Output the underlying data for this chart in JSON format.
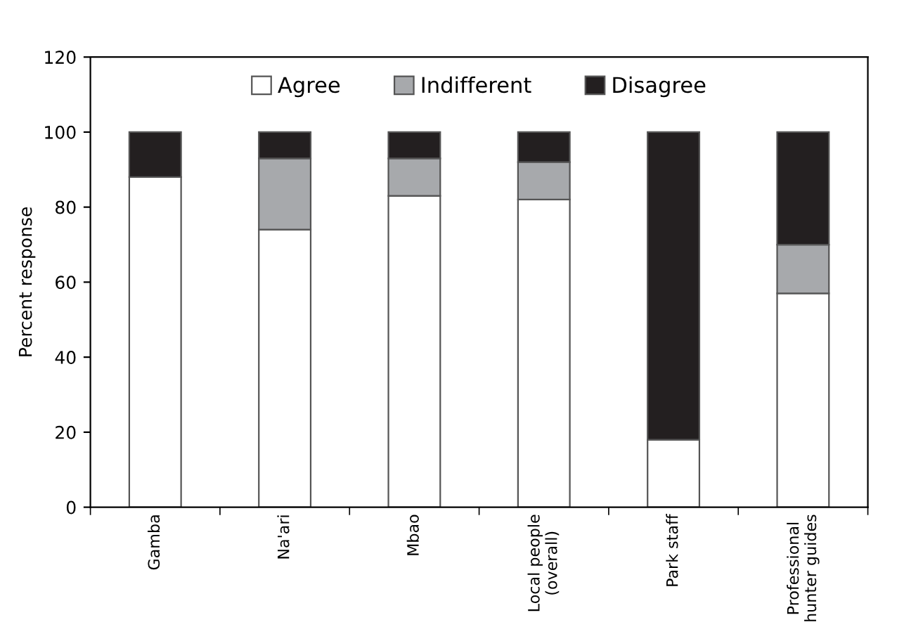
{
  "chart_data": {
    "type": "bar",
    "stacked": true,
    "ylabel": "Percent response",
    "categories": [
      "Gamba",
      "Na'ari",
      "Mbao",
      "Local people\n(overall)",
      "Park staff",
      "Professional\nhunter guides"
    ],
    "series": [
      {
        "name": "Agree",
        "color": "#ffffff",
        "values": [
          88,
          74,
          83,
          82,
          18,
          57
        ]
      },
      {
        "name": "Indifferent",
        "color": "#a7a9ac",
        "values": [
          null,
          19,
          10,
          10,
          null,
          13
        ]
      },
      {
        "name": "Disagree",
        "color": "#231f20",
        "values": [
          12,
          7,
          7,
          8,
          82,
          30
        ]
      }
    ],
    "ylim": [
      0,
      120
    ],
    "yticks": [
      0,
      20,
      40,
      60,
      80,
      100,
      120
    ],
    "grid": false,
    "legend": "top"
  }
}
